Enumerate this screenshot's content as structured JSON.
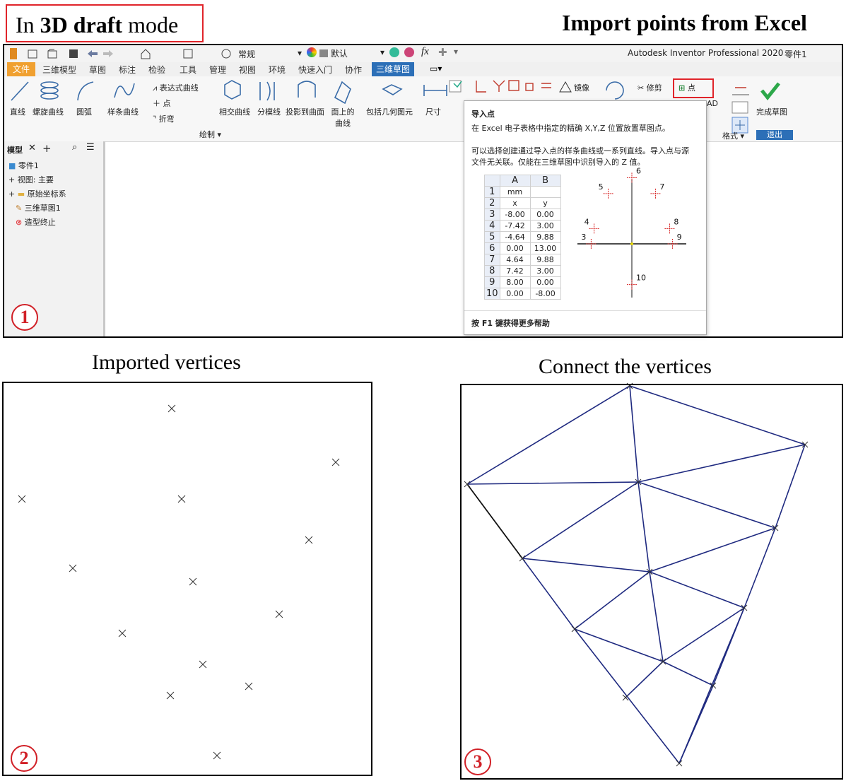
{
  "headings": {
    "mode_prefix": "In ",
    "mode_bold": "3D draft",
    "mode_suffix": " mode",
    "import": "Import points from Excel"
  },
  "window": {
    "title": "Autodesk Inventor Professional 2020",
    "doc": "零件1",
    "style_select": "常规",
    "color_select": "默认"
  },
  "tabs": [
    "文件",
    "三维模型",
    "草图",
    "标注",
    "检验",
    "工具",
    "管理",
    "视图",
    "环境",
    "快速入门",
    "协作",
    "三维草图"
  ],
  "ribbon": {
    "line": "直线",
    "helix": "螺旋曲线",
    "arc": "圆弧",
    "spline": "样条曲线",
    "equation_curve": "表达式曲线",
    "point": "点",
    "bend": "折弯",
    "draw_group": "绘制",
    "intersection_curve": "相交曲线",
    "silhouette": "分模线",
    "project_to_surface": "投影到曲面",
    "curve_on_face_1": "面上的",
    "curve_on_face_2": "曲线",
    "include_geometry": "包括几何图元",
    "dimension": "尺寸",
    "mirror": "镜像",
    "trim": "修剪",
    "import_point": "点",
    "format": "格式",
    "finish_sketch": "完成草图",
    "exit": "退出",
    "ad": "AD"
  },
  "browser": {
    "tab": "模型",
    "items": [
      "零件1",
      "视图: 主要",
      "原始坐标系",
      "三维草图1",
      "造型终止"
    ]
  },
  "tooltip": {
    "title": "导入点",
    "line1": "在 Excel 电子表格中指定的精确 X,Y,Z 位置放置草图点。",
    "line2": "可以选择创建通过导入点的样条曲线或一系列直线。导入点与源",
    "line3": "文件无关联。仅能在三维草图中识别导入的 Z 值。",
    "help": "按 F1 键获得更多帮助",
    "col_a": "A",
    "col_b": "B",
    "rows": [
      {
        "n": "1",
        "a": "mm",
        "b": ""
      },
      {
        "n": "2",
        "a": "x",
        "b": "y"
      },
      {
        "n": "3",
        "a": "-8.00",
        "b": "0.00"
      },
      {
        "n": "4",
        "a": "-7.42",
        "b": "3.00"
      },
      {
        "n": "5",
        "a": "-4.64",
        "b": "9.88"
      },
      {
        "n": "6",
        "a": "0.00",
        "b": "13.00"
      },
      {
        "n": "7",
        "a": "4.64",
        "b": "9.88"
      },
      {
        "n": "8",
        "a": "7.42",
        "b": "3.00"
      },
      {
        "n": "9",
        "a": "8.00",
        "b": "0.00"
      },
      {
        "n": "10",
        "a": "0.00",
        "b": "-8.00"
      }
    ],
    "plot_labels": [
      "3",
      "4",
      "5",
      "6",
      "7",
      "8",
      "9",
      "10"
    ]
  },
  "captions": {
    "imported": "Imported vertices",
    "connect": "Connect the vertices"
  },
  "badges": [
    "1",
    "2",
    "3"
  ],
  "colors": {
    "highlight_red": "#e0242a",
    "edge_blue": "#1f2a80",
    "tab_blue": "#2c6fb7",
    "file_tab": "#f0a030"
  }
}
